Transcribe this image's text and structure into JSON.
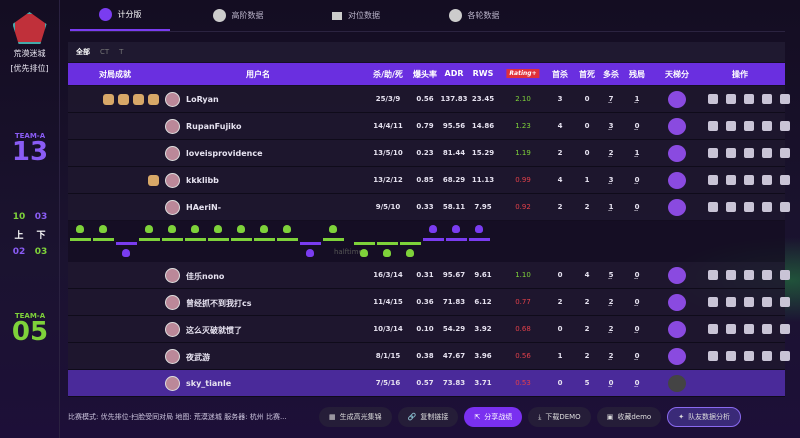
{
  "sidebar": {
    "map_name": "荒漠迷城",
    "mode": "[优先排位]"
  },
  "teams": [
    {
      "label": "TEAM-A",
      "score": "13",
      "color": "#8a5cf5"
    },
    {
      "label": "TEAM-A",
      "score": "05",
      "color": "#7ed23a"
    }
  ],
  "halves": {
    "first_a": "10",
    "second_a": "03",
    "first_label": "上",
    "second_label": "下",
    "first_b": "02",
    "second_b": "03"
  },
  "tabs": [
    {
      "label": "计分版",
      "icon": "calendar-icon",
      "active": true
    },
    {
      "label": "高阶数据",
      "icon": "shield-icon"
    },
    {
      "label": "对位数据",
      "icon": "versus-icon"
    },
    {
      "label": "各轮数据",
      "icon": "clock-icon"
    }
  ],
  "filters": [
    "全部",
    "CT",
    "T"
  ],
  "columns": {
    "achievements": "对局成就",
    "username": "用户名",
    "kda": "杀/助/死",
    "hs": "爆头率",
    "adr": "ADR",
    "rws": "RWS",
    "rating": "Rating+",
    "fk": "首杀",
    "fd": "首死",
    "multi": "多杀",
    "clutch": "残局",
    "ladder": "天梯分",
    "actions": "操作"
  },
  "team_a": [
    {
      "name": "LoRyan",
      "ach": 4,
      "kda": "25/3/9",
      "hs": "0.56",
      "adr": "137.83",
      "rws": "23.45",
      "rating": "2.10",
      "fk": "3",
      "fd": "0",
      "multi": "7",
      "clutch": "1",
      "badge": "B"
    },
    {
      "name": "RupanFujiko",
      "ach": 0,
      "kda": "14/4/11",
      "hs": "0.79",
      "adr": "95.56",
      "rws": "14.86",
      "rating": "1.23",
      "fk": "4",
      "fd": "0",
      "multi": "3",
      "clutch": "0",
      "badge": "C"
    },
    {
      "name": "loveisprovidence",
      "ach": 0,
      "kda": "13/5/10",
      "hs": "0.23",
      "adr": "81.44",
      "rws": "15.29",
      "rating": "1.19",
      "fk": "2",
      "fd": "0",
      "multi": "2",
      "clutch": "1",
      "badge": "C"
    },
    {
      "name": "kkklibb",
      "ach": 1,
      "kda": "13/2/12",
      "hs": "0.85",
      "adr": "68.29",
      "rws": "11.13",
      "rating": "0.99",
      "fk": "4",
      "fd": "1",
      "multi": "3",
      "clutch": "0",
      "badge": "C"
    },
    {
      "name": "HAeriN-",
      "ach": 0,
      "kda": "9/5/10",
      "hs": "0.33",
      "adr": "58.11",
      "rws": "7.95",
      "rating": "0.92",
      "fk": "2",
      "fd": "2",
      "multi": "1",
      "clutch": "0",
      "badge": "C"
    }
  ],
  "team_b": [
    {
      "name": "佳乐nono",
      "ach": 0,
      "kda": "16/3/14",
      "hs": "0.31",
      "adr": "95.67",
      "rws": "9.61",
      "rating": "1.10",
      "fk": "0",
      "fd": "4",
      "multi": "5",
      "clutch": "0",
      "badge": "C"
    },
    {
      "name": "曾经抓不到我打cs",
      "ach": 0,
      "kda": "11/4/15",
      "hs": "0.36",
      "adr": "71.83",
      "rws": "6.12",
      "rating": "0.77",
      "fk": "2",
      "fd": "2",
      "multi": "2",
      "clutch": "0",
      "badge": "C"
    },
    {
      "name": "这么灭破就惯了",
      "ach": 0,
      "kda": "10/3/14",
      "hs": "0.10",
      "adr": "54.29",
      "rws": "3.92",
      "rating": "0.68",
      "fk": "0",
      "fd": "2",
      "multi": "2",
      "clutch": "0",
      "badge": "C"
    },
    {
      "name": "夜武游",
      "ach": 0,
      "kda": "8/1/15",
      "hs": "0.38",
      "adr": "47.67",
      "rws": "3.96",
      "rating": "0.56",
      "fk": "1",
      "fd": "2",
      "multi": "2",
      "clutch": "0",
      "badge": "C"
    },
    {
      "name": "sky_tianle",
      "ach": 0,
      "kda": "7/5/16",
      "hs": "0.57",
      "adr": "73.83",
      "rws": "3.71",
      "rating": "0.53",
      "fk": "0",
      "fd": "5",
      "multi": "0",
      "clutch": "0",
      "badge": "?",
      "self": true
    }
  ],
  "rounds": [
    "A",
    "A",
    "B",
    "A",
    "A",
    "A",
    "A",
    "A",
    "A",
    "A",
    "B",
    "A",
    "A",
    "A",
    "A",
    "B",
    "B",
    "B"
  ],
  "halftime_label": "halftime",
  "colors": {
    "accent": "#6a2fe0",
    "green": "#7ed23a",
    "purple": "#7a3cf0",
    "rating_good": "#7ed23a",
    "rating_bad": "#e0404a"
  },
  "footer": {
    "info": "比赛模式: 优先排位-扫脸受同对局 地图: 荒漠迷城 服务器: 杭州 比赛...",
    "buttons": [
      "生成高光集锦",
      "复制链接",
      "分享战绩",
      "下载DEMO",
      "收藏demo",
      "队友数据分析"
    ]
  }
}
